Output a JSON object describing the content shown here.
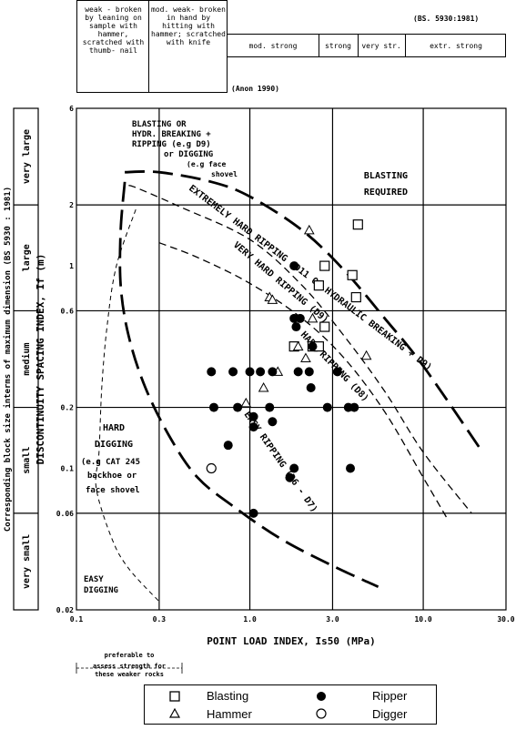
{
  "strength_table": {
    "col1": "weak - broken by leaning on sample with hammer, scratched with thumb- nail",
    "col2": "mod. weak- broken in hand by hitting with hammer; scratched with knife",
    "standard": "(BS. 5930:1981)",
    "col3": "mod. strong",
    "col4": "strong",
    "col5": "very str.",
    "col6": "extr. strong",
    "source": "(Anon 1990)"
  },
  "block_size": {
    "title": "Corresponding block size interms of maximum dimension (BS 5930 : 1981)",
    "classes": [
      "very large",
      "large",
      "medium",
      "small",
      "very small"
    ]
  },
  "zones": {
    "blasting_or": "BLASTING OR",
    "hydr": "HYDR. BREAKING +",
    "ripping": "RIPPING (e.g D9)",
    "or_digging": "or DIGGING",
    "face1": "(e.g face",
    "face2": "shovel",
    "blasting_required_1": "BLASTING",
    "blasting_required_2": "REQUIRED",
    "extremely": "EXTREMELY HARD RIPPING (D11 OR HYDRAULIC BREAKING + D9)",
    "very_hard": "VERY HARD RIPPING (D9)",
    "hard_ripping": "HARD RIPPING (D8)",
    "easy_ripping": "EASY RIPPING (D6 - D7)",
    "hard_digging_1": "HARD",
    "hard_digging_2": "DIGGING",
    "hard_digging_3": "(e.g CAT 245",
    "hard_digging_4": "backhoe or",
    "hard_digging_5": "face shovel",
    "easy_digging_1": "EASY",
    "easy_digging_2": "DIGGING"
  },
  "note": {
    "line1": "preferable to",
    "line2": "assess strength for",
    "line3": "these weaker rocks"
  },
  "legend": {
    "blasting": "Blasting",
    "hammer": "Hammer",
    "ripper": "Ripper",
    "digger": "Digger"
  },
  "chart_data": {
    "type": "scatter",
    "xlabel": "POINT LOAD INDEX, Is50 (MPa)",
    "ylabel": "DISCONTINUITY SPACING INDEX, If (m)",
    "x_scale": "log",
    "y_scale": "log",
    "xlim": [
      0.1,
      30
    ],
    "ylim": [
      0.02,
      6
    ],
    "x_ticks": [
      0.1,
      0.3,
      1.0,
      3.0,
      10.0,
      30.0
    ],
    "x_tick_labels": [
      "0.1",
      "0.3",
      "1.0",
      "3.0",
      "10.0",
      "30.0"
    ],
    "y_ticks": [
      0.02,
      0.06,
      0.1,
      0.2,
      0.6,
      1,
      2,
      6
    ],
    "y_tick_labels": [
      "0.02",
      "0.06",
      "0.1",
      "0.2",
      "0.6",
      "1",
      "2",
      "6"
    ],
    "grid": true,
    "series": [
      {
        "name": "Blasting",
        "marker": "open-square",
        "points": [
          [
            4.2,
            1.6
          ],
          [
            2.7,
            1.0
          ],
          [
            3.9,
            0.9
          ],
          [
            2.5,
            0.8
          ],
          [
            4.1,
            0.7
          ],
          [
            2.7,
            0.5
          ],
          [
            1.8,
            0.4
          ],
          [
            2.3,
            0.4
          ],
          [
            2.5,
            0.4
          ]
        ]
      },
      {
        "name": "Hammer",
        "marker": "open-triangle",
        "points": [
          [
            2.2,
            1.5
          ],
          [
            1.3,
            0.7
          ],
          [
            1.35,
            0.68
          ],
          [
            2.3,
            0.55
          ],
          [
            1.9,
            0.4
          ],
          [
            2.1,
            0.35
          ],
          [
            4.7,
            0.36
          ],
          [
            1.45,
            0.3
          ],
          [
            1.2,
            0.25
          ],
          [
            0.95,
            0.21
          ]
        ]
      },
      {
        "name": "Ripper",
        "marker": "filled-circle",
        "points": [
          [
            1.8,
            1.0
          ],
          [
            1.8,
            0.55
          ],
          [
            1.95,
            0.55
          ],
          [
            1.85,
            0.5
          ],
          [
            2.3,
            0.4
          ],
          [
            1.35,
            0.3
          ],
          [
            1.9,
            0.3
          ],
          [
            0.6,
            0.3
          ],
          [
            0.8,
            0.3
          ],
          [
            1.0,
            0.3
          ],
          [
            1.15,
            0.3
          ],
          [
            2.2,
            0.3
          ],
          [
            3.2,
            0.3
          ],
          [
            2.25,
            0.25
          ],
          [
            2.8,
            0.2
          ],
          [
            3.7,
            0.2
          ],
          [
            4.0,
            0.2
          ],
          [
            0.62,
            0.2
          ],
          [
            0.85,
            0.2
          ],
          [
            1.05,
            0.18
          ],
          [
            1.3,
            0.2
          ],
          [
            1.35,
            0.17
          ],
          [
            1.05,
            0.16
          ],
          [
            0.75,
            0.13
          ],
          [
            1.8,
            0.1
          ],
          [
            3.8,
            0.1
          ],
          [
            1.7,
            0.09
          ],
          [
            1.05,
            0.06
          ]
        ]
      },
      {
        "name": "Digger",
        "marker": "open-circle",
        "points": [
          [
            0.6,
            0.1
          ]
        ]
      }
    ],
    "boundaries": [
      {
        "name": "outer dashed",
        "style": "medium-dash",
        "points": [
          [
            0.2,
            2.5
          ],
          [
            0.23,
            2.4
          ],
          [
            0.4,
            1.95
          ],
          [
            1.0,
            1.35
          ],
          [
            2.0,
            0.8
          ],
          [
            3.5,
            0.45
          ],
          [
            6.0,
            0.24
          ],
          [
            10,
            0.12
          ],
          [
            19,
            0.06
          ]
        ]
      },
      {
        "name": "heavy dashed upper",
        "style": "heavy-dash",
        "points": [
          [
            0.19,
            2.9
          ],
          [
            0.3,
            2.9
          ],
          [
            0.6,
            2.6
          ],
          [
            1.0,
            2.2
          ],
          [
            2.0,
            1.5
          ],
          [
            3.5,
            0.95
          ],
          [
            6,
            0.55
          ],
          [
            10,
            0.32
          ],
          [
            22,
            0.12
          ]
        ]
      },
      {
        "name": "heavy dashed lower",
        "style": "heavy-dash",
        "points": [
          [
            0.19,
            2.6
          ],
          [
            0.18,
            1.5
          ],
          [
            0.18,
            0.8
          ],
          [
            0.2,
            0.45
          ],
          [
            0.25,
            0.25
          ],
          [
            0.35,
            0.14
          ],
          [
            0.5,
            0.09
          ],
          [
            0.8,
            0.065
          ],
          [
            1.5,
            0.045
          ],
          [
            3,
            0.033
          ],
          [
            5.5,
            0.026
          ]
        ]
      },
      {
        "name": "inner dashed",
        "style": "medium-dash",
        "points": [
          [
            0.3,
            1.3
          ],
          [
            0.5,
            1.1
          ],
          [
            1.0,
            0.82
          ],
          [
            2.0,
            0.55
          ],
          [
            3.5,
            0.35
          ],
          [
            6,
            0.19
          ],
          [
            10,
            0.09
          ],
          [
            14,
            0.055
          ]
        ]
      },
      {
        "name": "light dashed outer",
        "style": "light-dash",
        "points": [
          [
            0.22,
            1.9
          ],
          [
            0.17,
            1.0
          ],
          [
            0.15,
            0.5
          ],
          [
            0.14,
            0.25
          ],
          [
            0.135,
            0.12
          ],
          [
            0.13,
            0.08
          ],
          [
            0.16,
            0.045
          ],
          [
            0.2,
            0.032
          ],
          [
            0.3,
            0.022
          ]
        ]
      }
    ]
  }
}
